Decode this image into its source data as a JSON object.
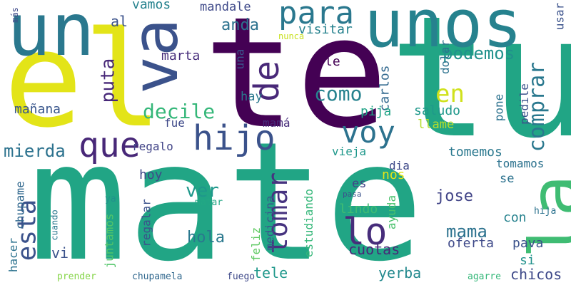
{
  "words": [
    {
      "text": "mate",
      "color": "#21a585"
    },
    {
      "text": "tu",
      "color": "#21a585"
    },
    {
      "text": "te",
      "color": "#440154"
    },
    {
      "text": "el",
      "color": "#e3e418"
    },
    {
      "text": "unos",
      "color": "#26828e"
    },
    {
      "text": "un",
      "color": "#2a788e"
    },
    {
      "text": "va",
      "color": "#3b528b"
    },
    {
      "text": "la",
      "color": "#3fbc73"
    },
    {
      "text": "hijo",
      "color": "#3b528b"
    },
    {
      "text": "lo",
      "color": "#472d7b"
    },
    {
      "text": "voy",
      "color": "#2c728e"
    },
    {
      "text": "que",
      "color": "#482878"
    },
    {
      "text": "para",
      "color": "#2a788e"
    },
    {
      "text": "comprar",
      "color": "#2a788e"
    },
    {
      "text": "tomar",
      "color": "#46337f"
    },
    {
      "text": "de",
      "color": "#482878"
    },
    {
      "text": "esta",
      "color": "#3b528b"
    },
    {
      "text": "en",
      "color": "#d0e11c"
    },
    {
      "text": "como",
      "color": "#26828e"
    },
    {
      "text": "decile",
      "color": "#35b779"
    },
    {
      "text": "mierda",
      "color": "#2c728e"
    },
    {
      "text": "podemos",
      "color": "#21918c"
    },
    {
      "text": "puta",
      "color": "#482878"
    },
    {
      "text": "anda",
      "color": "#2c728e"
    },
    {
      "text": "ver",
      "color": "#1f988b"
    },
    {
      "text": "mama",
      "color": "#2c728e"
    },
    {
      "text": "al",
      "color": "#3b528b"
    },
    {
      "text": "visitar",
      "color": "#26828e"
    },
    {
      "text": "mandale",
      "color": "#3e4989"
    },
    {
      "text": "marta",
      "color": "#472d7b"
    },
    {
      "text": "una",
      "color": "#3b528b"
    },
    {
      "text": "le",
      "color": "#440154"
    },
    {
      "text": "carlos",
      "color": "#31688e"
    },
    {
      "text": "dolar",
      "color": "#2c728e"
    },
    {
      "text": "usar",
      "color": "#3b528b"
    },
    {
      "text": "pone",
      "color": "#2c728e"
    },
    {
      "text": "pedile",
      "color": "#3b528b"
    },
    {
      "text": "saludo",
      "color": "#1f988b"
    },
    {
      "text": "llame",
      "color": "#b5de2b"
    },
    {
      "text": "pija",
      "color": "#20a386"
    },
    {
      "text": "hay",
      "color": "#2a788e"
    },
    {
      "text": "fue",
      "color": "#3e4989"
    },
    {
      "text": "mamá",
      "color": "#472d7b"
    },
    {
      "text": "regalo",
      "color": "#414487"
    },
    {
      "text": "vieja",
      "color": "#1f988b"
    },
    {
      "text": "tomemos",
      "color": "#2a788e"
    },
    {
      "text": "tomamos",
      "color": "#2c728e"
    },
    {
      "text": "dia",
      "color": "#3e4989"
    },
    {
      "text": "nos",
      "color": "#e3e418"
    },
    {
      "text": "es",
      "color": "#414487"
    },
    {
      "text": "se",
      "color": "#2c728e"
    },
    {
      "text": "jose",
      "color": "#414487"
    },
    {
      "text": "lindo",
      "color": "#3fbc73"
    },
    {
      "text": "hoy",
      "color": "#3e4989"
    },
    {
      "text": "mañana",
      "color": "#39568c"
    },
    {
      "text": "vamos",
      "color": "#26828e"
    },
    {
      "text": "más",
      "color": "#3e4989"
    },
    {
      "text": "nunca",
      "color": "#c8e020"
    },
    {
      "text": "chupame",
      "color": "#31688e"
    },
    {
      "text": "hacer",
      "color": "#2c728e"
    },
    {
      "text": "juntamos",
      "color": "#52c569"
    },
    {
      "text": "regalar",
      "color": "#3b528b"
    },
    {
      "text": "hola",
      "color": "#2a788e"
    },
    {
      "text": "medicina",
      "color": "#39568c"
    },
    {
      "text": "feliz",
      "color": "#5ec962"
    },
    {
      "text": "estudiando",
      "color": "#35b779"
    },
    {
      "text": "ayuda",
      "color": "#4ac16d"
    },
    {
      "text": "cuotas",
      "color": "#482878"
    },
    {
      "text": "con",
      "color": "#26828e"
    },
    {
      "text": "oferta",
      "color": "#3e4989"
    },
    {
      "text": "pava",
      "color": "#3b528b"
    },
    {
      "text": "si",
      "color": "#21918c"
    },
    {
      "text": "hija",
      "color": "#2c728e"
    },
    {
      "text": "vi",
      "color": "#3b528b"
    },
    {
      "text": "ya",
      "color": "#21918c"
    },
    {
      "text": "cuando",
      "color": "#2a788e"
    },
    {
      "text": "matar",
      "color": "#22a884"
    },
    {
      "text": "pasa",
      "color": "#3b528b"
    },
    {
      "text": "tele",
      "color": "#1f988b"
    },
    {
      "text": "yerba",
      "color": "#23898e"
    },
    {
      "text": "chicos",
      "color": "#3e4989"
    },
    {
      "text": "prender",
      "color": "#86d549"
    },
    {
      "text": "chupamela",
      "color": "#31688e"
    },
    {
      "text": "fuego",
      "color": "#3e4989"
    },
    {
      "text": "agarre",
      "color": "#35b779"
    }
  ]
}
